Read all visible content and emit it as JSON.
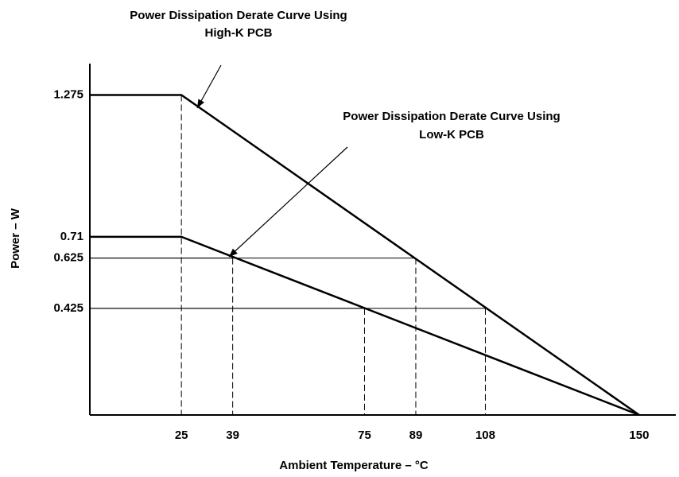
{
  "chart_data": {
    "type": "line",
    "xlabel": "Ambient Temperature – °C",
    "ylabel": "Power – W",
    "x": [
      0,
      25,
      150
    ],
    "series": [
      {
        "name": "High-K PCB",
        "color": "#000000",
        "values": [
          1.275,
          1.275,
          0
        ]
      },
      {
        "name": "Low-K PCB",
        "color": "#000000",
        "values": [
          0.71,
          0.71,
          0
        ]
      }
    ],
    "annotations": [
      [
        "Power Dissipation Derate Curve Using",
        "High-K PCB"
      ],
      [
        "Power Dissipation Derate Curve Using",
        "Low-K PCB"
      ]
    ],
    "guides": [
      {
        "x": 25,
        "y": 1.275
      },
      {
        "x": 39,
        "y": 0.625
      },
      {
        "x": 89,
        "y": 0.625
      },
      {
        "x": 75,
        "y": 0.425
      },
      {
        "x": 108,
        "y": 0.425
      }
    ],
    "xlim": [
      0,
      160
    ],
    "ylim": [
      0,
      1.4
    ],
    "xticks": [
      25,
      39,
      75,
      89,
      108,
      150
    ],
    "yticks": [
      1.275,
      0.71,
      0.625,
      0.425
    ]
  }
}
